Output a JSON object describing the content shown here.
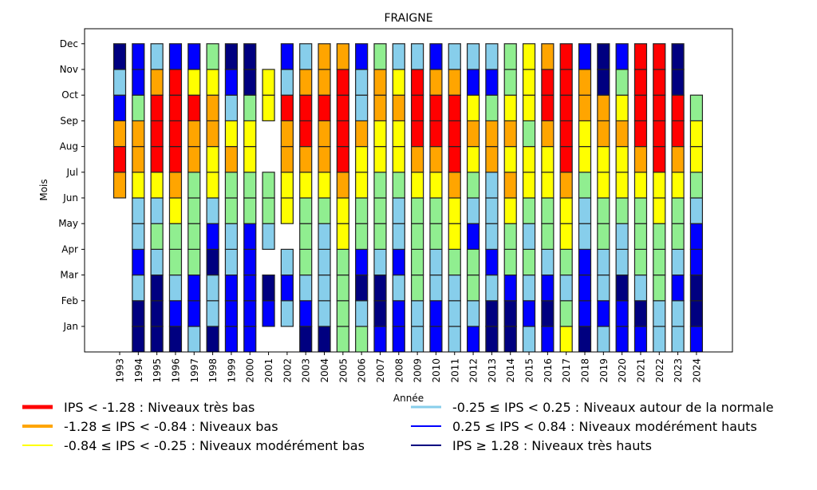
{
  "chart_data": {
    "type": "heatmap",
    "title": "FRAIGNE",
    "xlabel": "Année",
    "ylabel": "Mois",
    "x": [
      "1993",
      "1994",
      "1995",
      "1996",
      "1997",
      "1998",
      "1999",
      "2000",
      "2001",
      "2002",
      "2003",
      "2004",
      "2005",
      "2006",
      "2007",
      "2008",
      "2009",
      "2010",
      "2011",
      "2012",
      "2013",
      "2014",
      "2015",
      "2016",
      "2017",
      "2018",
      "2019",
      "2020",
      "2021",
      "2022",
      "2023",
      "2024"
    ],
    "y_ticks": [
      "Jan",
      "Feb",
      "Mar",
      "Apr",
      "May",
      "Jun",
      "Jul",
      "Aug",
      "Sep",
      "Oct",
      "Nov",
      "Dec"
    ],
    "color_map": {
      "tb": "#ff0000",
      "b": "#ffa500",
      "mb": "#ffff00",
      "n": "#87ceeb",
      "ng": "#90ee90",
      "mh": "#0000ff",
      "th": "#000080"
    },
    "cell_note": "values per year listed Jan..Dec; codes: tb=très bas(red), b=bas(orange), mb=modérément bas(yellow), ng=light green, n=autour de la normale(light blue), mh=modérément hauts(blue), th=très hauts(navy), null=no data",
    "values": {
      "1993": [
        null,
        null,
        null,
        null,
        null,
        null,
        "b",
        "tb",
        "b",
        "mh",
        "n",
        "th"
      ],
      "1994": [
        "th",
        "th",
        "n",
        "mh",
        "n",
        "n",
        "mb",
        "b",
        "b",
        "ng",
        "mh",
        "mh"
      ],
      "1995": [
        "th",
        "th",
        "th",
        "n",
        "ng",
        "n",
        "mb",
        "tb",
        "tb",
        "tb",
        "b",
        "n"
      ],
      "1996": [
        "th",
        "mh",
        "n",
        "ng",
        "ng",
        "mb",
        "b",
        "tb",
        "tb",
        "tb",
        "tb",
        "mh"
      ],
      "1997": [
        "n",
        "mh",
        "mh",
        "ng",
        "ng",
        "ng",
        "ng",
        "b",
        "b",
        "tb",
        "mb",
        "mh"
      ],
      "1998": [
        "th",
        "n",
        "n",
        "th",
        "mh",
        "n",
        "mb",
        "mb",
        "b",
        "b",
        "mb",
        "ng"
      ],
      "1999": [
        "mh",
        "mh",
        "mh",
        "n",
        "n",
        "ng",
        "ng",
        "b",
        "mb",
        "n",
        "mh",
        "th"
      ],
      "2000": [
        "mh",
        "mh",
        "mh",
        "mh",
        "mh",
        "ng",
        "ng",
        "mb",
        "mb",
        "ng",
        "th",
        "th"
      ],
      "2001": [
        null,
        "mh",
        "th",
        null,
        "n",
        "ng",
        "ng",
        null,
        null,
        "mb",
        "mb",
        null
      ],
      "2002": [
        null,
        "n",
        "mh",
        "n",
        null,
        "mb",
        "mb",
        "b",
        "b",
        "tb",
        "n",
        "mh"
      ],
      "2003": [
        "th",
        "mh",
        "n",
        "ng",
        "ng",
        "ng",
        "mb",
        "b",
        "tb",
        "tb",
        "b",
        "n"
      ],
      "2004": [
        "th",
        "n",
        "n",
        "n",
        "n",
        "ng",
        "mb",
        "b",
        "b",
        "tb",
        "b",
        "b"
      ],
      "2005": [
        "ng",
        "ng",
        "ng",
        "ng",
        "mb",
        "mb",
        "b",
        "tb",
        "tb",
        "tb",
        "tb",
        "b"
      ],
      "2006": [
        "ng",
        "n",
        "th",
        "mh",
        "ng",
        "ng",
        "mb",
        "mb",
        "b",
        "n",
        "n",
        "mh"
      ],
      "2007": [
        "mh",
        "th",
        "th",
        "n",
        "ng",
        "ng",
        "ng",
        "mb",
        "mb",
        "b",
        "b",
        "ng"
      ],
      "2008": [
        "mh",
        "mh",
        "n",
        "mh",
        "n",
        "n",
        "ng",
        "mb",
        "mb",
        "b",
        "mb",
        "n"
      ],
      "2009": [
        "n",
        "n",
        "ng",
        "ng",
        "ng",
        "ng",
        "mb",
        "b",
        "tb",
        "tb",
        "tb",
        "n"
      ],
      "2010": [
        "mh",
        "mh",
        "n",
        "n",
        "ng",
        "ng",
        "mb",
        "b",
        "tb",
        "tb",
        "b",
        "mh"
      ],
      "2011": [
        "n",
        "n",
        "n",
        "ng",
        "mb",
        "mb",
        "b",
        "tb",
        "tb",
        "tb",
        "b",
        "n"
      ],
      "2012": [
        "mh",
        "n",
        "ng",
        "ng",
        "mh",
        "n",
        "ng",
        "mb",
        "b",
        "mb",
        "mh",
        "n"
      ],
      "2013": [
        "th",
        "th",
        "n",
        "mh",
        "n",
        "n",
        "n",
        "b",
        "b",
        "ng",
        "mh",
        "n"
      ],
      "2014": [
        "th",
        "th",
        "mh",
        "ng",
        "ng",
        "mb",
        "b",
        "mb",
        "b",
        "mb",
        "ng",
        "ng"
      ],
      "2015": [
        "n",
        "mh",
        "n",
        "ng",
        "n",
        "ng",
        "mb",
        "mb",
        "ng",
        "mb",
        "mb",
        "mb"
      ],
      "2016": [
        "mh",
        "th",
        "mh",
        "n",
        "ng",
        "ng",
        "mb",
        "mb",
        "b",
        "tb",
        "tb",
        "b"
      ],
      "2017": [
        "mb",
        "ng",
        "n",
        "ng",
        "mb",
        "mb",
        "b",
        "tb",
        "tb",
        "tb",
        "tb",
        "tb"
      ],
      "2018": [
        "th",
        "mh",
        "mh",
        "mh",
        "n",
        "n",
        "ng",
        "mb",
        "mb",
        "b",
        "b",
        "mh"
      ],
      "2019": [
        "n",
        "mh",
        "n",
        "n",
        "ng",
        "ng",
        "mb",
        "mb",
        "b",
        "b",
        "th",
        "th"
      ],
      "2020": [
        "mh",
        "mh",
        "th",
        "n",
        "n",
        "ng",
        "mb",
        "mb",
        "b",
        "mb",
        "ng",
        "mh"
      ],
      "2021": [
        "mh",
        "th",
        "n",
        "ng",
        "ng",
        "ng",
        "mb",
        "b",
        "tb",
        "tb",
        "tb",
        "tb"
      ],
      "2022": [
        "n",
        "n",
        "ng",
        "ng",
        "ng",
        "mb",
        "mb",
        "tb",
        "tb",
        "tb",
        "tb",
        "tb"
      ],
      "2023": [
        "n",
        "n",
        "mh",
        "n",
        "ng",
        "ng",
        "mb",
        "b",
        "tb",
        "tb",
        "th",
        "th"
      ],
      "2024": [
        "mh",
        "th",
        "th",
        "mh",
        "mh",
        "n",
        "ng",
        "mb",
        "mb",
        "ng",
        null,
        null
      ]
    },
    "legend": [
      {
        "label": "IPS < -1.28 : Niveaux très bas",
        "color": "#ff0000",
        "code": "tb"
      },
      {
        "label": "-1.28 ≤ IPS < -0.84 : Niveaux bas",
        "color": "#ffa500",
        "code": "b"
      },
      {
        "label": "-0.84 ≤ IPS < -0.25 : Niveaux modérément bas",
        "color": "#ffff00",
        "code": "mb"
      },
      {
        "label": "-0.25 ≤ IPS < 0.25 : Niveaux autour de la normale",
        "color": "#87ceeb",
        "code": "n"
      },
      {
        "label": "0.25 ≤ IPS < 0.84 : Niveaux modérément hauts",
        "color": "#0000ff",
        "code": "mh"
      },
      {
        "label": "IPS ≥ 1.28 : Niveaux très hauts",
        "color": "#000080",
        "code": "th"
      }
    ],
    "legend_placement": "bottom",
    "grid": false
  }
}
